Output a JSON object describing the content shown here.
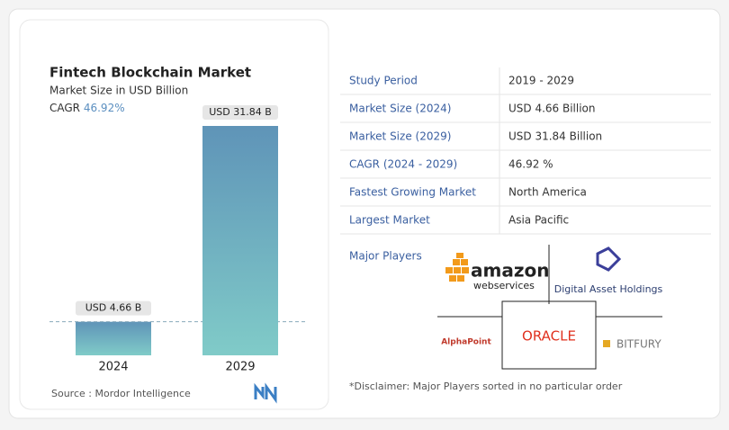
{
  "chart_data": {
    "type": "bar",
    "title": "Fintech Blockchain Market",
    "subtitle": "Market Size in USD Billion",
    "cagr_label": "CAGR",
    "cagr_value": "46.92%",
    "categories": [
      "2024",
      "2029"
    ],
    "values": [
      4.66,
      31.84
    ],
    "value_labels": [
      "USD 4.66 B",
      "USD 31.84 B"
    ],
    "color_top": "#5f94b8",
    "color_bottom": "#80cbc8",
    "source": "Source :  Mordor Intelligence"
  },
  "table": {
    "rows": [
      [
        "Study Period",
        "2019 - 2029"
      ],
      [
        "Market Size (2024)",
        "USD 4.66 Billion"
      ],
      [
        "Market Size (2029)",
        "USD 31.84 Billion"
      ],
      [
        "CAGR (2024 - 2029)",
        "46.92 %"
      ],
      [
        "Fastest Growing Market",
        "North America"
      ],
      [
        "Largest Market",
        "Asia Pacific"
      ]
    ]
  },
  "players": {
    "title": "Major Players",
    "items": [
      {
        "name": "amazon",
        "sub": "webservices"
      },
      {
        "name": "Digital Asset Holdings"
      },
      {
        "name": "AlphaPoint"
      },
      {
        "name": "ORACLE"
      },
      {
        "name": "BITFURY"
      }
    ]
  },
  "disclaimer": "*Disclaimer: Major Players sorted in no particular order"
}
